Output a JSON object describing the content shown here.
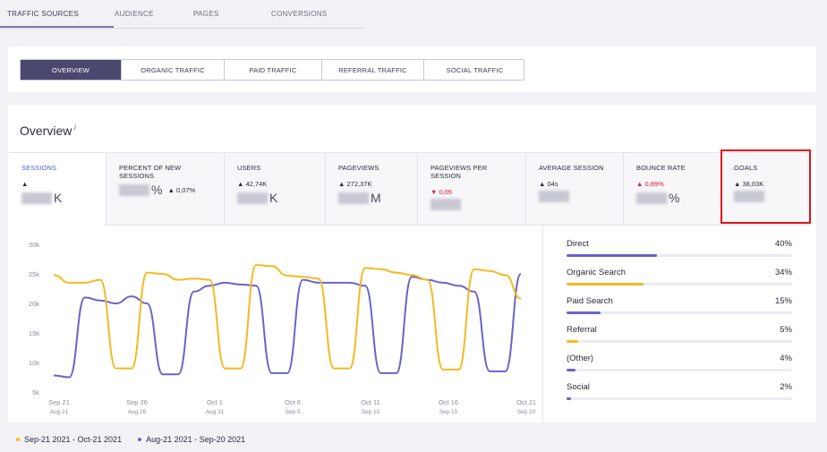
{
  "tabs": [
    "TRAFFIC SOURCES",
    "AUDIENCE",
    "PAGES",
    "CONVERSIONS"
  ],
  "subtabs": [
    "OVERVIEW",
    "ORGANIC TRAFFIC",
    "PAID TRAFFIC",
    "REFERRAL TRAFFIC",
    "SOCIAL TRAFFIC"
  ],
  "overview": {
    "title": "Overview",
    "info": "i",
    "metrics": [
      {
        "label": "SESSIONS",
        "change": "▲",
        "value": "K"
      },
      {
        "label": "PERCENT OF NEW SESSIONS",
        "change": "▲ 0,07%",
        "value": "%"
      },
      {
        "label": "USERS",
        "change": "▲ 42,74K",
        "value": "K"
      },
      {
        "label": "PAGEVIEWS",
        "change": "▲ 272,37K",
        "value": "M"
      },
      {
        "label": "PAGEVIEWS PER SESSION",
        "change": "▼ 0,05",
        "change_color": "#e0182d"
      },
      {
        "label": "AVERAGE SESSION",
        "change": "▲ 04s"
      },
      {
        "label": "BOUNCE RATE",
        "change": "▲ 0,89%",
        "change_color": "#e0182d",
        "value": "%"
      },
      {
        "label": "GOALS",
        "change": "▲ 38,03K"
      }
    ]
  },
  "chart_data": {
    "type": "line",
    "categories": [
      "Sep 21",
      null,
      null,
      null,
      null,
      "Sep 26",
      null,
      null,
      null,
      null,
      "Oct 1",
      null,
      null,
      null,
      null,
      "Oct 6",
      null,
      null,
      null,
      null,
      "Oct 11",
      null,
      null,
      null,
      null,
      "Oct 16",
      null,
      null,
      null,
      null,
      "Oct 21"
    ],
    "categories_secondary": [
      "Aug 21",
      null,
      null,
      null,
      null,
      "Aug 26",
      null,
      null,
      null,
      null,
      "Aug 31",
      null,
      null,
      null,
      null,
      "Sep 5",
      null,
      null,
      null,
      null,
      "Sep 10",
      null,
      null,
      null,
      null,
      "Sep 15",
      null,
      null,
      null,
      null,
      "Sep 20"
    ],
    "series": [
      {
        "name": "Sep-21 2021 - Oct-21 2021",
        "color": "#f5b921",
        "values": [
          24800,
          23500,
          23500,
          24000,
          9000,
          9000,
          25200,
          25000,
          24000,
          24200,
          24000,
          9000,
          9000,
          26500,
          26300,
          24700,
          24500,
          24200,
          9000,
          9000,
          26000,
          25800,
          25200,
          24800,
          24000,
          8800,
          8800,
          25800,
          25500,
          24800,
          20800
        ]
      },
      {
        "name": "Aug-21 2021 - Sep-20 2021",
        "color": "#6b63c9",
        "values": [
          7800,
          7500,
          21000,
          20500,
          20000,
          21200,
          20000,
          8000,
          8000,
          22000,
          23000,
          23500,
          23200,
          23000,
          8200,
          8200,
          24000,
          23500,
          23500,
          23500,
          23000,
          8200,
          8200,
          24500,
          24000,
          23500,
          23000,
          22000,
          8500,
          8500,
          25000
        ]
      }
    ],
    "ylim": [
      5000,
      30000
    ],
    "yticks": [
      {
        "value": 5000,
        "label": "5k"
      },
      {
        "value": 10000,
        "label": "10k"
      },
      {
        "value": 15000,
        "label": "15k"
      },
      {
        "value": 20000,
        "label": "20k"
      },
      {
        "value": 25000,
        "label": "25k"
      },
      {
        "value": 30000,
        "label": "30k"
      }
    ],
    "grid": false
  },
  "sources": [
    {
      "name": "Direct",
      "value": 40,
      "value_label": "40%",
      "color": "#6b63c9"
    },
    {
      "name": "Organic Search",
      "value": 34,
      "value_label": "34%",
      "color": "#f5b921"
    },
    {
      "name": "Paid Search",
      "value": 15,
      "value_label": "15%",
      "color": "#6b63c9"
    },
    {
      "name": "Referral",
      "value": 5,
      "value_label": "5%",
      "color": "#f5b921"
    },
    {
      "name": "(Other)",
      "value": 4,
      "value_label": "4%",
      "color": "#6b63c9"
    },
    {
      "name": "Social",
      "value": 2,
      "value_label": "2%",
      "color": "#6b63c9"
    }
  ]
}
